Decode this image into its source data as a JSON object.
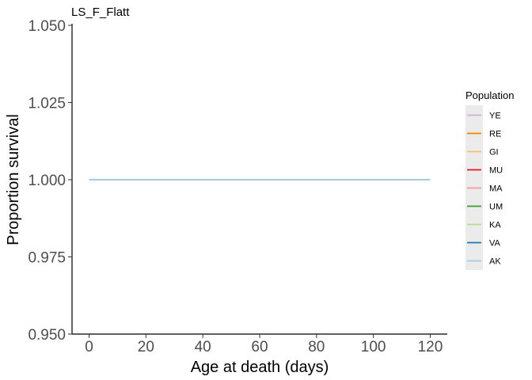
{
  "chart_data": {
    "type": "line",
    "title": "LS_F_Flatt",
    "xlabel": "Age at death (days)",
    "ylabel": "Proportion survival",
    "xlim": [
      -6,
      126
    ],
    "ylim": [
      0.95,
      1.05
    ],
    "x_ticks": [
      0,
      20,
      40,
      60,
      80,
      100,
      120
    ],
    "y_ticks": [
      0.95,
      0.975,
      1.0,
      1.025,
      1.05
    ],
    "x_tick_labels": [
      "0",
      "20",
      "40",
      "60",
      "80",
      "100",
      "120"
    ],
    "y_tick_labels": [
      "0.950",
      "0.975",
      "1.000",
      "1.025",
      "1.050"
    ],
    "grid": false,
    "legend": {
      "title": "Population",
      "placement": "right"
    },
    "series": [
      {
        "name": "YE",
        "color": "#CAB2D6",
        "x": [],
        "y": []
      },
      {
        "name": "RE",
        "color": "#FF7F00",
        "x": [],
        "y": []
      },
      {
        "name": "GI",
        "color": "#FDBF6F",
        "x": [],
        "y": []
      },
      {
        "name": "MU",
        "color": "#E31A1C",
        "x": [],
        "y": []
      },
      {
        "name": "MA",
        "color": "#FB9A99",
        "x": [],
        "y": []
      },
      {
        "name": "UM",
        "color": "#33A02C",
        "x": [],
        "y": []
      },
      {
        "name": "KA",
        "color": "#B2DF8A",
        "x": [],
        "y": []
      },
      {
        "name": "VA",
        "color": "#1F78B4",
        "x": [],
        "y": []
      },
      {
        "name": "AK",
        "color": "#A6CEE3",
        "x": [
          0,
          120
        ],
        "y": [
          1.0,
          1.0
        ]
      }
    ],
    "visible_line_color": "#7FBCD6"
  }
}
